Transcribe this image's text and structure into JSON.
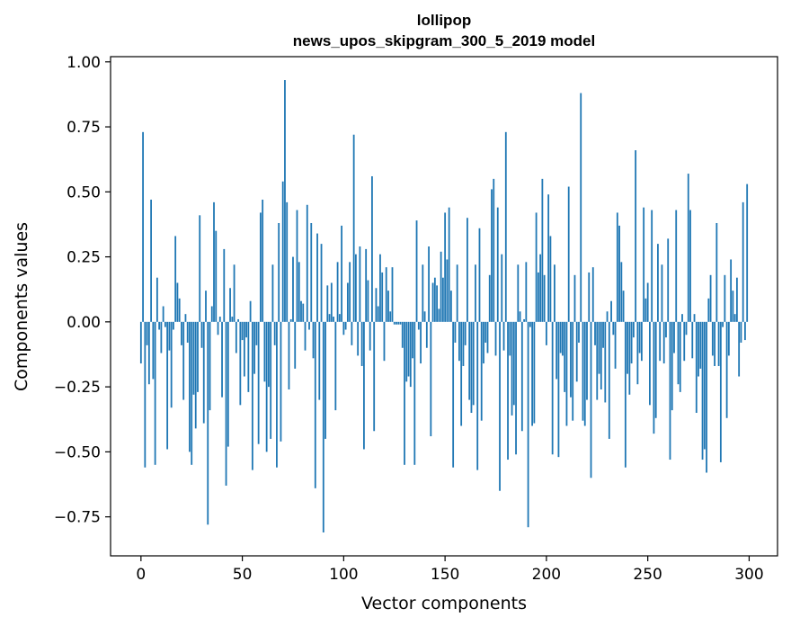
{
  "chart_data": {
    "type": "bar",
    "title": "lollipop",
    "subtitle": "news_upos_skipgram_300_5_2019 model",
    "xlabel": "Vector components",
    "ylabel": "Components values",
    "xlim": [
      -15,
      314
    ],
    "ylim": [
      -0.9,
      1.02
    ],
    "xticks": [
      0,
      50,
      100,
      150,
      200,
      250,
      300
    ],
    "xtick_labels": [
      "0",
      "50",
      "100",
      "150",
      "200",
      "250",
      "300"
    ],
    "yticks": [
      -0.75,
      -0.5,
      -0.25,
      0.0,
      0.25,
      0.5,
      0.75,
      1.0
    ],
    "ytick_labels": [
      "−0.75",
      "−0.50",
      "−0.25",
      "0.00",
      "0.25",
      "0.50",
      "0.75",
      "1.00"
    ],
    "bar_color": "#1f77b4",
    "values": [
      -0.16,
      0.73,
      -0.56,
      -0.09,
      -0.24,
      0.47,
      -0.22,
      -0.55,
      0.17,
      -0.03,
      -0.12,
      0.06,
      -0.02,
      -0.49,
      -0.11,
      -0.33,
      -0.03,
      0.33,
      0.15,
      0.09,
      -0.09,
      -0.3,
      0.03,
      -0.08,
      -0.5,
      -0.55,
      -0.28,
      -0.41,
      -0.27,
      0.41,
      -0.1,
      -0.39,
      0.12,
      -0.78,
      -0.34,
      0.06,
      0.46,
      0.35,
      -0.05,
      0.02,
      -0.29,
      0.28,
      -0.63,
      -0.48,
      0.13,
      0.02,
      0.22,
      -0.12,
      0.01,
      -0.32,
      -0.07,
      -0.21,
      -0.06,
      -0.27,
      0.08,
      -0.57,
      -0.2,
      -0.09,
      -0.47,
      0.42,
      0.47,
      -0.23,
      -0.5,
      -0.25,
      -0.45,
      0.22,
      -0.09,
      -0.56,
      0.38,
      -0.46,
      0.54,
      0.93,
      0.46,
      -0.26,
      0.01,
      0.25,
      -0.18,
      0.43,
      0.23,
      0.08,
      0.07,
      -0.11,
      0.45,
      -0.03,
      0.38,
      -0.14,
      -0.64,
      0.34,
      -0.3,
      0.3,
      -0.81,
      -0.45,
      0.14,
      0.03,
      0.15,
      0.02,
      -0.34,
      0.23,
      0.03,
      0.37,
      -0.05,
      -0.03,
      0.15,
      0.23,
      -0.09,
      0.72,
      0.26,
      -0.13,
      0.29,
      -0.17,
      -0.49,
      0.28,
      0.16,
      -0.11,
      0.56,
      -0.42,
      0.13,
      0.06,
      0.26,
      0.19,
      -0.15,
      0.21,
      0.12,
      0.04,
      0.21,
      -0.01,
      -0.01,
      -0.01,
      -0.01,
      -0.1,
      -0.55,
      -0.23,
      -0.21,
      -0.25,
      -0.14,
      -0.55,
      0.39,
      -0.03,
      -0.16,
      0.22,
      0.04,
      -0.1,
      0.29,
      -0.44,
      0.15,
      0.17,
      0.14,
      0.05,
      0.27,
      0.17,
      0.42,
      0.24,
      0.44,
      0.12,
      -0.56,
      -0.08,
      0.22,
      -0.15,
      -0.4,
      -0.17,
      -0.09,
      0.4,
      -0.3,
      -0.35,
      -0.32,
      0.22,
      -0.57,
      0.36,
      -0.38,
      -0.16,
      -0.08,
      -0.12,
      0.18,
      0.51,
      0.55,
      -0.13,
      0.44,
      -0.65,
      0.26,
      -0.11,
      0.73,
      -0.53,
      -0.13,
      -0.36,
      -0.32,
      -0.51,
      0.22,
      0.04,
      -0.42,
      0.01,
      0.23,
      -0.79,
      -0.02,
      -0.4,
      -0.39,
      0.42,
      0.19,
      0.26,
      0.55,
      0.18,
      -0.09,
      0.49,
      0.33,
      -0.51,
      0.22,
      -0.22,
      -0.52,
      -0.12,
      -0.13,
      -0.27,
      -0.4,
      0.52,
      -0.29,
      -0.38,
      0.18,
      -0.23,
      -0.08,
      0.88,
      -0.38,
      -0.4,
      -0.3,
      0.19,
      -0.6,
      0.21,
      -0.09,
      -0.3,
      -0.2,
      -0.26,
      -0.1,
      -0.31,
      0.04,
      -0.45,
      0.08,
      -0.05,
      -0.18,
      0.42,
      0.37,
      0.23,
      0.12,
      -0.56,
      -0.2,
      -0.28,
      -0.16,
      -0.06,
      0.66,
      -0.24,
      -0.12,
      -0.15,
      0.44,
      0.09,
      0.15,
      -0.32,
      0.43,
      -0.43,
      -0.37,
      0.3,
      -0.15,
      0.22,
      -0.16,
      -0.06,
      0.32,
      -0.53,
      -0.34,
      -0.12,
      0.43,
      -0.24,
      -0.27,
      0.03,
      -0.15,
      -0.05,
      0.57,
      0.43,
      -0.14,
      0.03,
      -0.35,
      -0.21,
      -0.18,
      -0.53,
      -0.49,
      -0.58,
      0.09,
      0.18,
      -0.13,
      -0.17,
      0.38,
      -0.17,
      -0.54,
      -0.02,
      0.18,
      -0.37,
      -0.13,
      0.24,
      0.12,
      0.03,
      0.17,
      -0.21,
      -0.08,
      0.46,
      -0.07,
      0.53
    ]
  }
}
